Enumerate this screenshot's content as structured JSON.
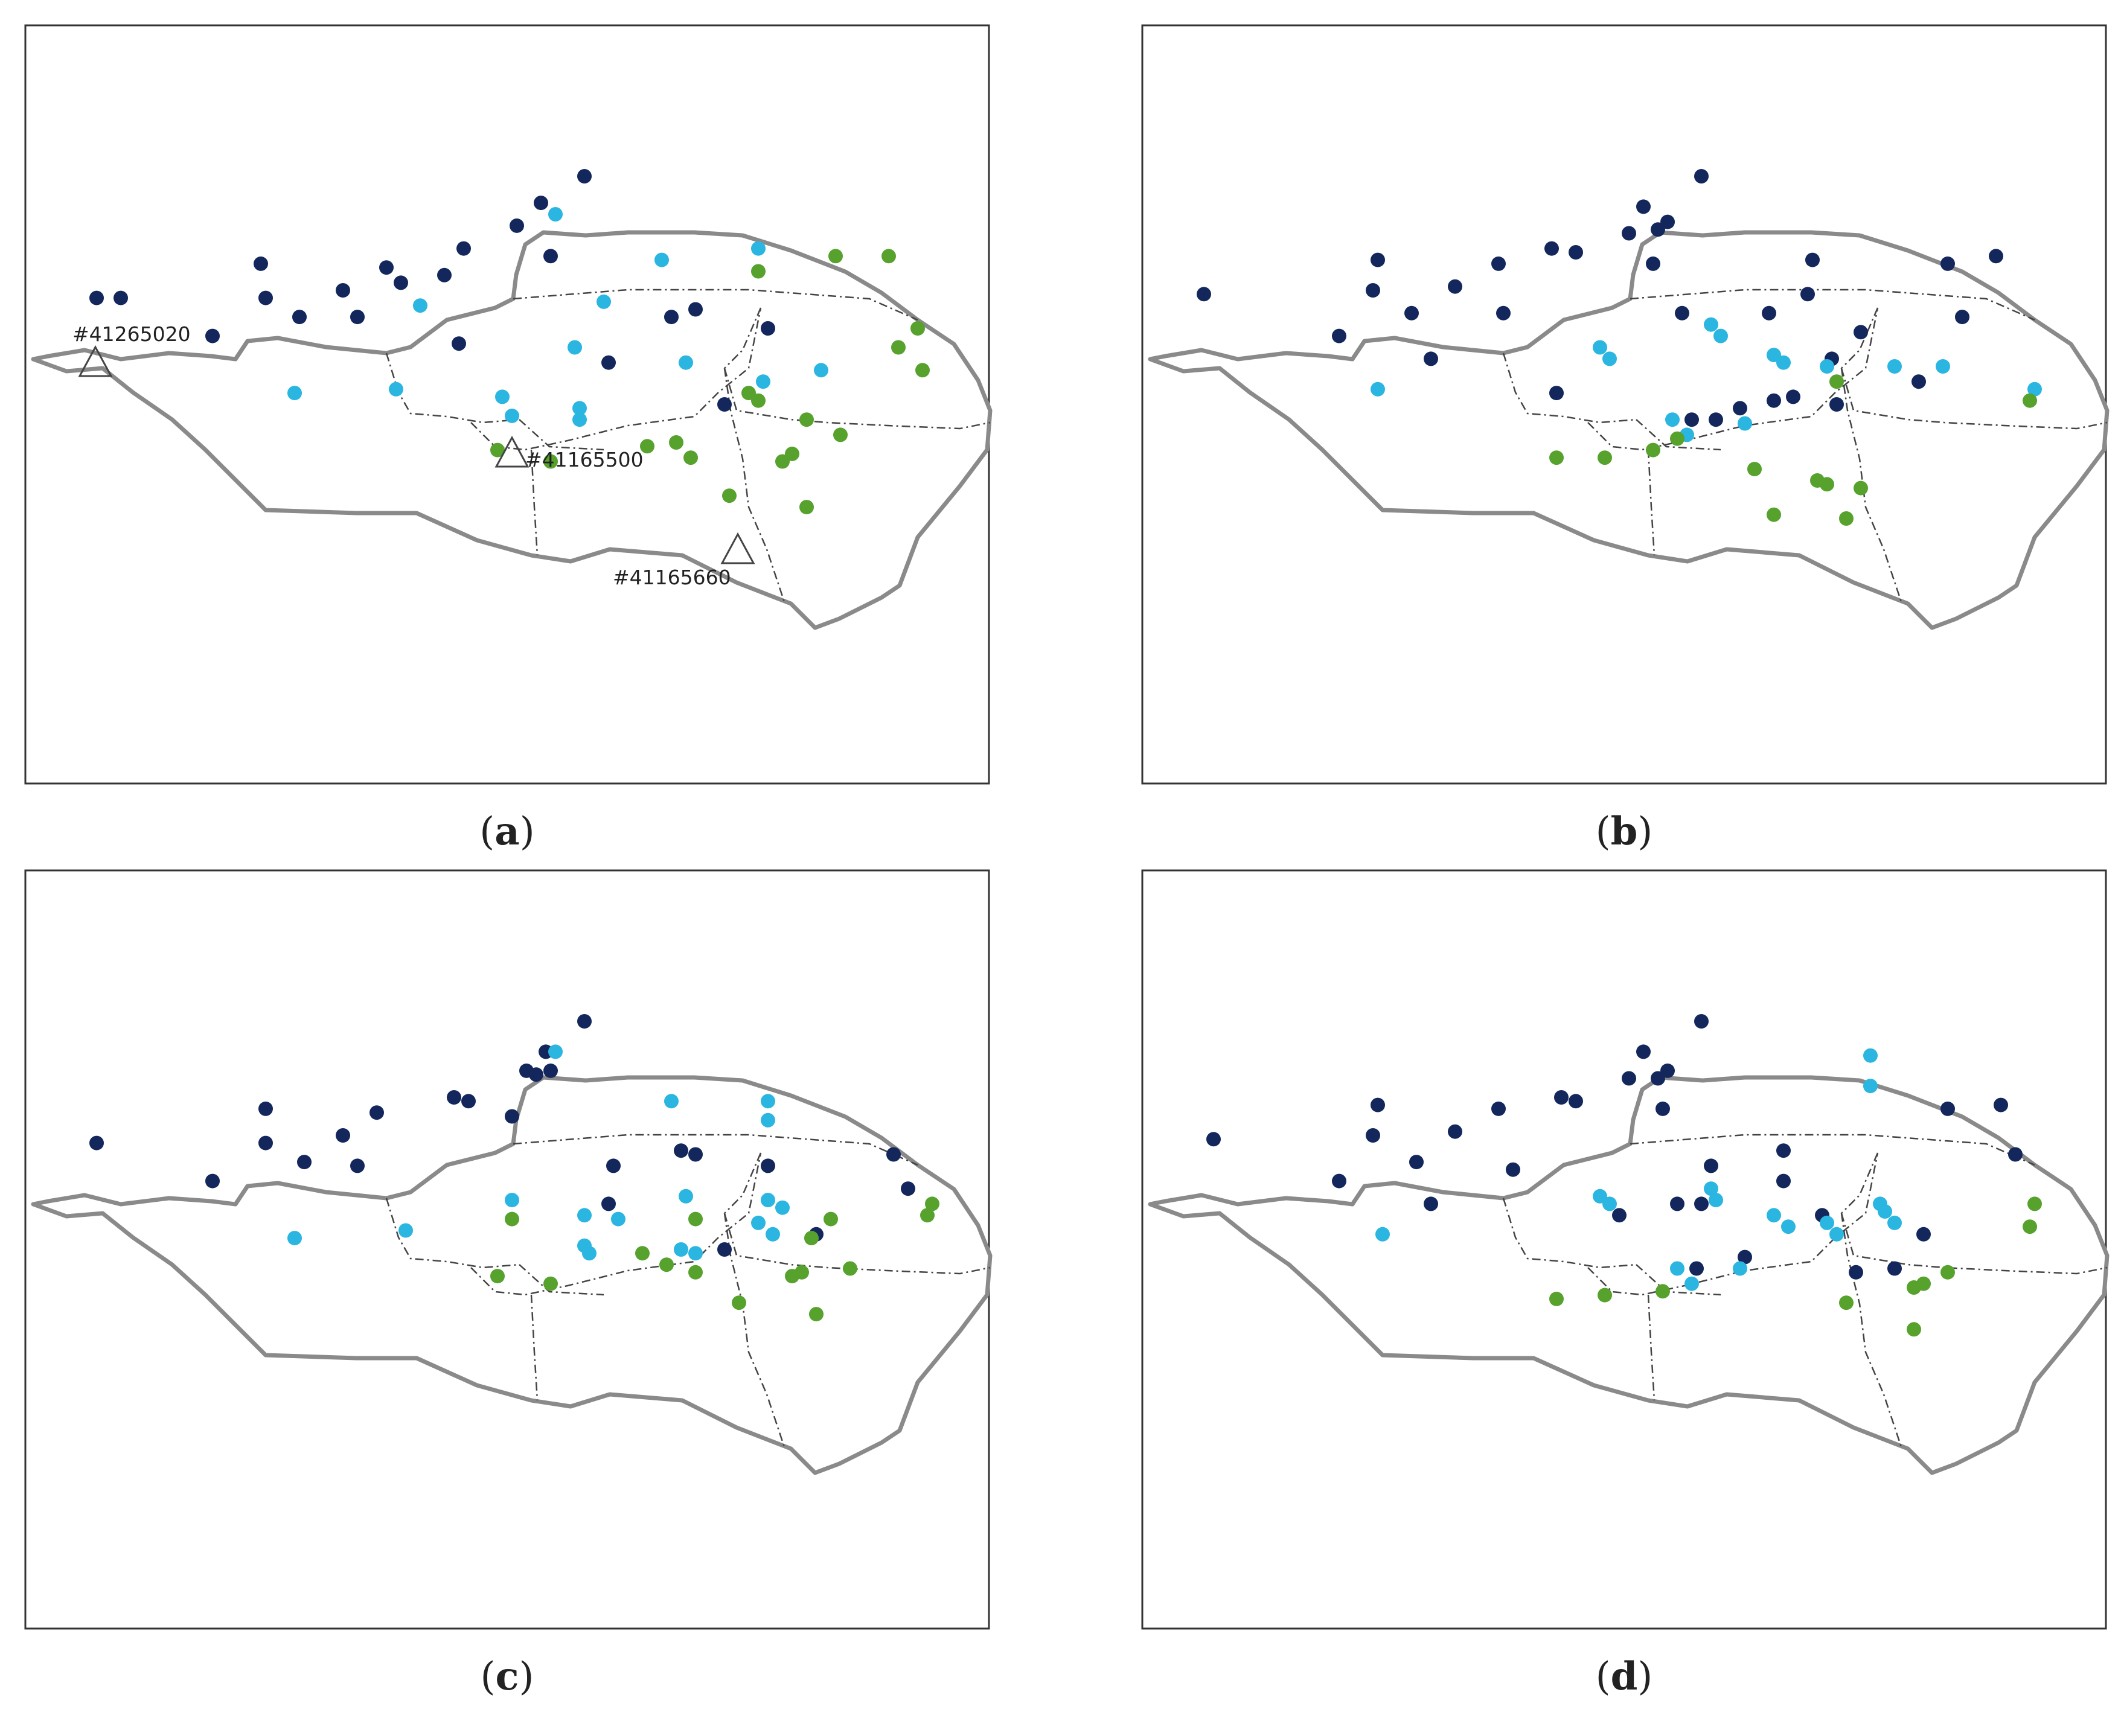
{
  "colors": {
    "class1": "#13275c",
    "class2": "#2ab6e0",
    "class3": "#56a22d"
  },
  "panels": [
    {
      "id": "a",
      "label": "a",
      "gauges": [
        {
          "name": "#41265020"
        },
        {
          "name": "#41165500"
        },
        {
          "name": "#41165660"
        }
      ],
      "points": [
        [
          0.58,
          0.2,
          1
        ],
        [
          0.535,
          0.235,
          1
        ],
        [
          0.51,
          0.265,
          1
        ],
        [
          0.245,
          0.315,
          1
        ],
        [
          0.375,
          0.32,
          1
        ],
        [
          0.455,
          0.295,
          1
        ],
        [
          0.545,
          0.305,
          1
        ],
        [
          0.39,
          0.34,
          1
        ],
        [
          0.435,
          0.33,
          1
        ],
        [
          0.25,
          0.36,
          1
        ],
        [
          0.33,
          0.35,
          1
        ],
        [
          0.285,
          0.385,
          1
        ],
        [
          0.195,
          0.41,
          1
        ],
        [
          0.345,
          0.385,
          1
        ],
        [
          0.45,
          0.42,
          1
        ],
        [
          0.605,
          0.445,
          1
        ],
        [
          0.67,
          0.385,
          1
        ],
        [
          0.695,
          0.375,
          1
        ],
        [
          0.77,
          0.4,
          1
        ],
        [
          0.725,
          0.5,
          1
        ],
        [
          0.075,
          0.36,
          1
        ],
        [
          0.55,
          0.25,
          2
        ],
        [
          0.66,
          0.31,
          2
        ],
        [
          0.76,
          0.295,
          2
        ],
        [
          0.41,
          0.37,
          2
        ],
        [
          0.6,
          0.365,
          2
        ],
        [
          0.57,
          0.425,
          2
        ],
        [
          0.765,
          0.47,
          2
        ],
        [
          0.685,
          0.445,
          2
        ],
        [
          0.825,
          0.455,
          2
        ],
        [
          0.28,
          0.485,
          2
        ],
        [
          0.385,
          0.48,
          2
        ],
        [
          0.505,
          0.515,
          2
        ],
        [
          0.575,
          0.505,
          2
        ],
        [
          0.575,
          0.52,
          2
        ],
        [
          0.76,
          0.325,
          3
        ],
        [
          0.84,
          0.305,
          3
        ],
        [
          0.895,
          0.305,
          3
        ],
        [
          0.905,
          0.425,
          3
        ],
        [
          0.93,
          0.455,
          3
        ],
        [
          0.925,
          0.4,
          3
        ],
        [
          0.75,
          0.485,
          3
        ],
        [
          0.76,
          0.495,
          3
        ],
        [
          0.81,
          0.52,
          3
        ],
        [
          0.845,
          0.54,
          3
        ],
        [
          0.645,
          0.555,
          3
        ],
        [
          0.675,
          0.55,
          3
        ],
        [
          0.69,
          0.57,
          3
        ],
        [
          0.785,
          0.575,
          3
        ],
        [
          0.795,
          0.565,
          3
        ],
        [
          0.49,
          0.56,
          3
        ],
        [
          0.545,
          0.575,
          3
        ],
        [
          0.73,
          0.62,
          3
        ],
        [
          0.81,
          0.635,
          3
        ],
        [
          0.1,
          0.36,
          1
        ],
        [
          0.495,
          0.49,
          2
        ]
      ]
    },
    {
      "id": "b",
      "label": "b",
      "gauges": [],
      "points": [
        [
          0.58,
          0.2,
          1
        ],
        [
          0.52,
          0.24,
          1
        ],
        [
          0.505,
          0.275,
          1
        ],
        [
          0.535,
          0.27,
          1
        ],
        [
          0.545,
          0.26,
          1
        ],
        [
          0.245,
          0.31,
          1
        ],
        [
          0.37,
          0.315,
          1
        ],
        [
          0.425,
          0.295,
          1
        ],
        [
          0.45,
          0.3,
          1
        ],
        [
          0.53,
          0.315,
          1
        ],
        [
          0.24,
          0.35,
          1
        ],
        [
          0.325,
          0.345,
          1
        ],
        [
          0.28,
          0.38,
          1
        ],
        [
          0.205,
          0.41,
          1
        ],
        [
          0.375,
          0.38,
          1
        ],
        [
          0.065,
          0.355,
          1
        ],
        [
          0.3,
          0.44,
          1
        ],
        [
          0.43,
          0.485,
          1
        ],
        [
          0.56,
          0.38,
          1
        ],
        [
          0.695,
          0.31,
          1
        ],
        [
          0.65,
          0.38,
          1
        ],
        [
          0.69,
          0.355,
          1
        ],
        [
          0.715,
          0.44,
          1
        ],
        [
          0.745,
          0.405,
          1
        ],
        [
          0.835,
          0.315,
          1
        ],
        [
          0.885,
          0.305,
          1
        ],
        [
          0.85,
          0.385,
          1
        ],
        [
          0.675,
          0.49,
          1
        ],
        [
          0.655,
          0.495,
          1
        ],
        [
          0.805,
          0.47,
          1
        ],
        [
          0.57,
          0.52,
          1
        ],
        [
          0.595,
          0.52,
          1
        ],
        [
          0.62,
          0.505,
          1
        ],
        [
          0.72,
          0.5,
          1
        ],
        [
          0.475,
          0.425,
          2
        ],
        [
          0.485,
          0.44,
          2
        ],
        [
          0.59,
          0.395,
          2
        ],
        [
          0.6,
          0.41,
          2
        ],
        [
          0.655,
          0.435,
          2
        ],
        [
          0.665,
          0.445,
          2
        ],
        [
          0.71,
          0.45,
          2
        ],
        [
          0.78,
          0.45,
          2
        ],
        [
          0.83,
          0.45,
          2
        ],
        [
          0.925,
          0.48,
          2
        ],
        [
          0.245,
          0.48,
          2
        ],
        [
          0.55,
          0.52,
          2
        ],
        [
          0.565,
          0.54,
          2
        ],
        [
          0.625,
          0.525,
          2
        ],
        [
          0.92,
          0.495,
          3
        ],
        [
          0.72,
          0.47,
          3
        ],
        [
          0.555,
          0.545,
          3
        ],
        [
          0.53,
          0.56,
          3
        ],
        [
          0.635,
          0.585,
          3
        ],
        [
          0.7,
          0.6,
          3
        ],
        [
          0.71,
          0.605,
          3
        ],
        [
          0.745,
          0.61,
          3
        ],
        [
          0.655,
          0.645,
          3
        ],
        [
          0.73,
          0.65,
          3
        ],
        [
          0.48,
          0.57,
          3
        ],
        [
          0.43,
          0.57,
          3
        ]
      ]
    },
    {
      "id": "c",
      "label": "c",
      "gauges": [],
      "points": [
        [
          0.58,
          0.2,
          1
        ],
        [
          0.54,
          0.24,
          1
        ],
        [
          0.52,
          0.265,
          1
        ],
        [
          0.53,
          0.27,
          1
        ],
        [
          0.545,
          0.265,
          1
        ],
        [
          0.25,
          0.315,
          1
        ],
        [
          0.365,
          0.32,
          1
        ],
        [
          0.445,
          0.3,
          1
        ],
        [
          0.46,
          0.305,
          1
        ],
        [
          0.505,
          0.325,
          1
        ],
        [
          0.25,
          0.36,
          1
        ],
        [
          0.33,
          0.35,
          1
        ],
        [
          0.29,
          0.385,
          1
        ],
        [
          0.195,
          0.41,
          1
        ],
        [
          0.345,
          0.39,
          1
        ],
        [
          0.075,
          0.36,
          1
        ],
        [
          0.605,
          0.44,
          1
        ],
        [
          0.68,
          0.37,
          1
        ],
        [
          0.61,
          0.39,
          1
        ],
        [
          0.695,
          0.375,
          1
        ],
        [
          0.77,
          0.39,
          1
        ],
        [
          0.9,
          0.375,
          1
        ],
        [
          0.915,
          0.42,
          1
        ],
        [
          0.82,
          0.48,
          1
        ],
        [
          0.725,
          0.5,
          1
        ],
        [
          0.55,
          0.24,
          2
        ],
        [
          0.67,
          0.305,
          2
        ],
        [
          0.77,
          0.305,
          2
        ],
        [
          0.77,
          0.33,
          2
        ],
        [
          0.505,
          0.435,
          2
        ],
        [
          0.58,
          0.455,
          2
        ],
        [
          0.615,
          0.46,
          2
        ],
        [
          0.685,
          0.43,
          2
        ],
        [
          0.77,
          0.435,
          2
        ],
        [
          0.785,
          0.445,
          2
        ],
        [
          0.76,
          0.465,
          2
        ],
        [
          0.28,
          0.485,
          2
        ],
        [
          0.395,
          0.475,
          2
        ],
        [
          0.58,
          0.495,
          2
        ],
        [
          0.585,
          0.505,
          2
        ],
        [
          0.68,
          0.5,
          2
        ],
        [
          0.695,
          0.505,
          2
        ],
        [
          0.775,
          0.48,
          2
        ],
        [
          0.935,
          0.455,
          3
        ],
        [
          0.94,
          0.44,
          3
        ],
        [
          0.835,
          0.46,
          3
        ],
        [
          0.815,
          0.485,
          3
        ],
        [
          0.695,
          0.46,
          3
        ],
        [
          0.505,
          0.46,
          3
        ],
        [
          0.49,
          0.535,
          3
        ],
        [
          0.545,
          0.545,
          3
        ],
        [
          0.64,
          0.505,
          3
        ],
        [
          0.665,
          0.52,
          3
        ],
        [
          0.695,
          0.53,
          3
        ],
        [
          0.795,
          0.535,
          3
        ],
        [
          0.805,
          0.53,
          3
        ],
        [
          0.855,
          0.525,
          3
        ],
        [
          0.74,
          0.57,
          3
        ],
        [
          0.82,
          0.585,
          3
        ]
      ]
    },
    {
      "id": "d",
      "label": "d",
      "gauges": [],
      "points": [
        [
          0.58,
          0.2,
          1
        ],
        [
          0.52,
          0.24,
          1
        ],
        [
          0.505,
          0.275,
          1
        ],
        [
          0.535,
          0.275,
          1
        ],
        [
          0.545,
          0.265,
          1
        ],
        [
          0.245,
          0.31,
          1
        ],
        [
          0.37,
          0.315,
          1
        ],
        [
          0.435,
          0.3,
          1
        ],
        [
          0.45,
          0.305,
          1
        ],
        [
          0.54,
          0.315,
          1
        ],
        [
          0.24,
          0.35,
          1
        ],
        [
          0.325,
          0.345,
          1
        ],
        [
          0.285,
          0.385,
          1
        ],
        [
          0.205,
          0.41,
          1
        ],
        [
          0.385,
          0.395,
          1
        ],
        [
          0.075,
          0.355,
          1
        ],
        [
          0.3,
          0.44,
          1
        ],
        [
          0.495,
          0.455,
          1
        ],
        [
          0.555,
          0.44,
          1
        ],
        [
          0.58,
          0.44,
          1
        ],
        [
          0.665,
          0.37,
          1
        ],
        [
          0.665,
          0.41,
          1
        ],
        [
          0.59,
          0.39,
          1
        ],
        [
          0.835,
          0.315,
          1
        ],
        [
          0.89,
          0.31,
          1
        ],
        [
          0.905,
          0.375,
          1
        ],
        [
          0.81,
          0.48,
          1
        ],
        [
          0.705,
          0.455,
          1
        ],
        [
          0.575,
          0.525,
          1
        ],
        [
          0.625,
          0.51,
          1
        ],
        [
          0.74,
          0.53,
          1
        ],
        [
          0.78,
          0.525,
          1
        ],
        [
          0.755,
          0.245,
          2
        ],
        [
          0.755,
          0.285,
          2
        ],
        [
          0.475,
          0.43,
          2
        ],
        [
          0.485,
          0.44,
          2
        ],
        [
          0.59,
          0.42,
          2
        ],
        [
          0.595,
          0.435,
          2
        ],
        [
          0.655,
          0.455,
          2
        ],
        [
          0.67,
          0.47,
          2
        ],
        [
          0.71,
          0.465,
          2
        ],
        [
          0.72,
          0.48,
          2
        ],
        [
          0.765,
          0.44,
          2
        ],
        [
          0.77,
          0.45,
          2
        ],
        [
          0.78,
          0.465,
          2
        ],
        [
          0.25,
          0.48,
          2
        ],
        [
          0.555,
          0.525,
          2
        ],
        [
          0.57,
          0.545,
          2
        ],
        [
          0.62,
          0.525,
          2
        ],
        [
          0.925,
          0.44,
          3
        ],
        [
          0.92,
          0.47,
          3
        ],
        [
          0.835,
          0.53,
          3
        ],
        [
          0.81,
          0.545,
          3
        ],
        [
          0.8,
          0.55,
          3
        ],
        [
          0.73,
          0.57,
          3
        ],
        [
          0.8,
          0.605,
          3
        ],
        [
          0.48,
          0.56,
          3
        ],
        [
          0.43,
          0.565,
          3
        ],
        [
          0.54,
          0.555,
          3
        ]
      ]
    }
  ]
}
